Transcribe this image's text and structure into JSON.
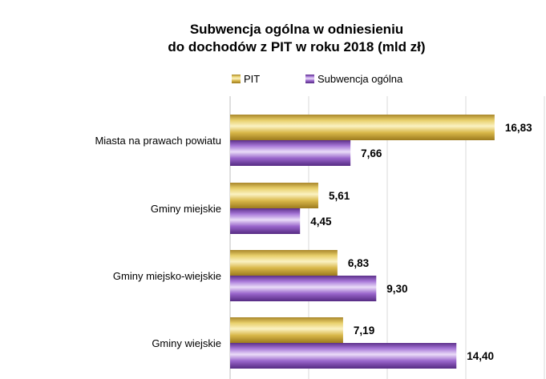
{
  "chart_data": {
    "type": "bar",
    "orientation": "horizontal",
    "title_lines": [
      "Subwencja ogólna w odniesieniu",
      "do dochodów z PIT w roku 2018 (mld zł)"
    ],
    "categories": [
      "Miasta na prawach powiatu",
      "Gminy miejskie",
      "Gminy miejsko-wiejskie",
      "Gminy wiejskie"
    ],
    "series": [
      {
        "name": "PIT",
        "values": [
          16.83,
          5.61,
          6.83,
          7.19
        ],
        "labels": [
          "16,83",
          "5,61",
          "6,83",
          "7,19"
        ]
      },
      {
        "name": "Subwencja ogólna",
        "values": [
          7.66,
          4.45,
          9.3,
          14.4
        ],
        "labels": [
          "7,66",
          "4,45",
          "9,30",
          "14,40"
        ]
      }
    ],
    "colors": {
      "PIT": "#c8a83a",
      "Subwencja ogólna": "#8e5bbf",
      "gridline": "#d9d9d9"
    },
    "xlim": [
      0,
      20
    ],
    "grid": true,
    "legend_position": "top"
  }
}
